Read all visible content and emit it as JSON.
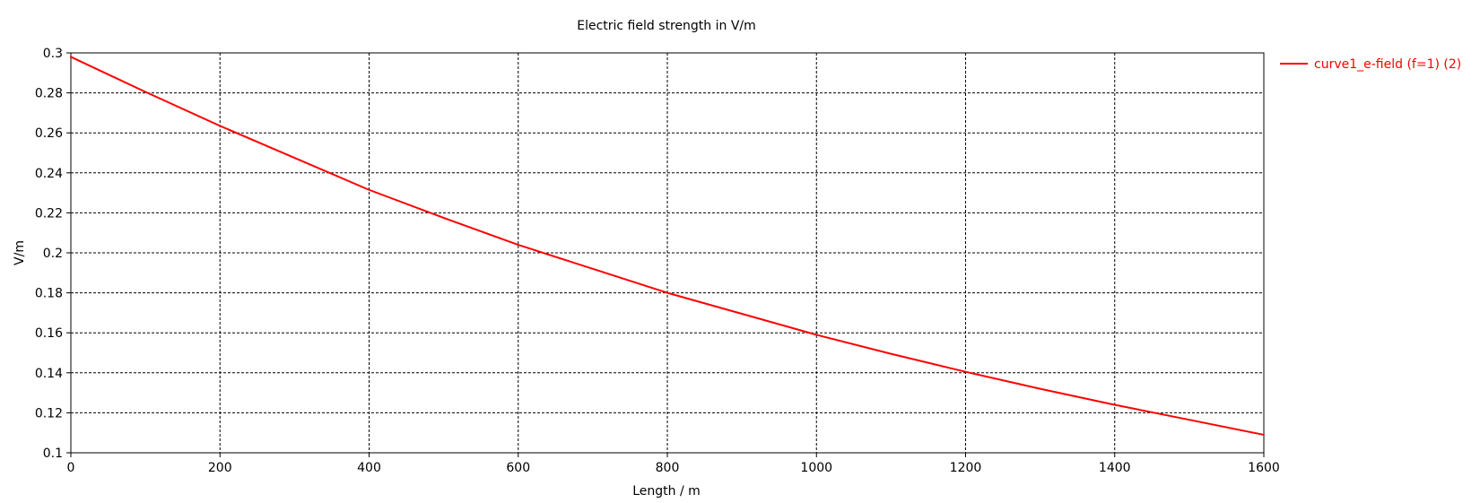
{
  "chart_data": {
    "type": "line",
    "title": "Electric field strength in V/m",
    "xlabel": "Length / m",
    "ylabel": "V/m",
    "xlim": [
      0,
      1600
    ],
    "ylim": [
      0.1,
      0.3
    ],
    "x_ticks": [
      0,
      200,
      400,
      600,
      800,
      1000,
      1200,
      1400,
      1600
    ],
    "y_ticks": [
      0.1,
      0.12,
      0.14,
      0.16,
      0.18,
      0.2,
      0.22,
      0.24,
      0.26,
      0.28,
      0.3
    ],
    "x_tick_labels": [
      "0",
      "200",
      "400",
      "600",
      "800",
      "1000",
      "1200",
      "1400",
      "1600"
    ],
    "y_tick_labels": [
      "0.1",
      "0.12",
      "0.14",
      "0.16",
      "0.18",
      "0.2",
      "0.22",
      "0.24",
      "0.26",
      "0.28",
      "0.3"
    ],
    "grid": true,
    "legend_position": "right",
    "series": [
      {
        "name": "curve1_e-field (f=1) (2)",
        "color": "#ff0000",
        "x": [
          0,
          100,
          200,
          300,
          400,
          500,
          600,
          700,
          800,
          900,
          1000,
          1100,
          1200,
          1300,
          1400,
          1500,
          1600
        ],
        "y": [
          0.298,
          0.2805,
          0.2635,
          0.2475,
          0.2315,
          0.2175,
          0.204,
          0.192,
          0.18,
          0.1695,
          0.159,
          0.1495,
          0.1405,
          0.132,
          0.124,
          0.1165,
          0.109
        ]
      }
    ]
  }
}
